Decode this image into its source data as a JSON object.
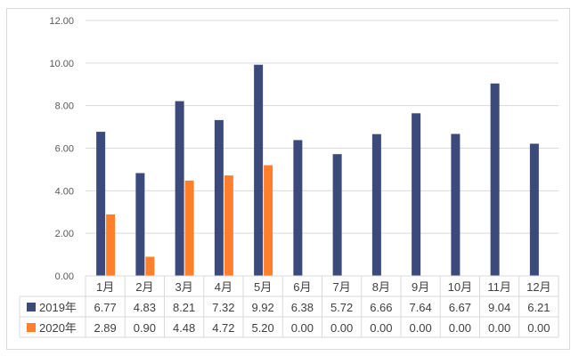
{
  "chart_data": {
    "type": "bar",
    "categories": [
      "1月",
      "2月",
      "3月",
      "4月",
      "5月",
      "6月",
      "7月",
      "8月",
      "9月",
      "10月",
      "11月",
      "12月"
    ],
    "series": [
      {
        "name": "2019年",
        "color": "#3b4a7a",
        "values": [
          6.77,
          4.83,
          8.21,
          7.32,
          9.92,
          6.38,
          5.72,
          6.66,
          7.64,
          6.67,
          9.04,
          6.21
        ]
      },
      {
        "name": "2020年",
        "color": "#ff7f2a",
        "values": [
          2.89,
          0.9,
          4.48,
          4.72,
          5.2,
          0.0,
          0.0,
          0.0,
          0.0,
          0.0,
          0.0,
          0.0
        ]
      }
    ],
    "series_labels": [
      [
        "6.77",
        "4.83",
        "8.21",
        "7.32",
        "9.92",
        "6.38",
        "5.72",
        "6.66",
        "7.64",
        "6.67",
        "9.04",
        "6.21"
      ],
      [
        "2.89",
        "0.90",
        "4.48",
        "4.72",
        "5.20",
        "0.00",
        "0.00",
        "0.00",
        "0.00",
        "0.00",
        "0.00",
        "0.00"
      ]
    ],
    "ylim": [
      0,
      12
    ],
    "yticks": [
      "0.00",
      "2.00",
      "4.00",
      "6.00",
      "8.00",
      "10.00",
      "12.00"
    ],
    "grid": true,
    "data_table": true
  }
}
